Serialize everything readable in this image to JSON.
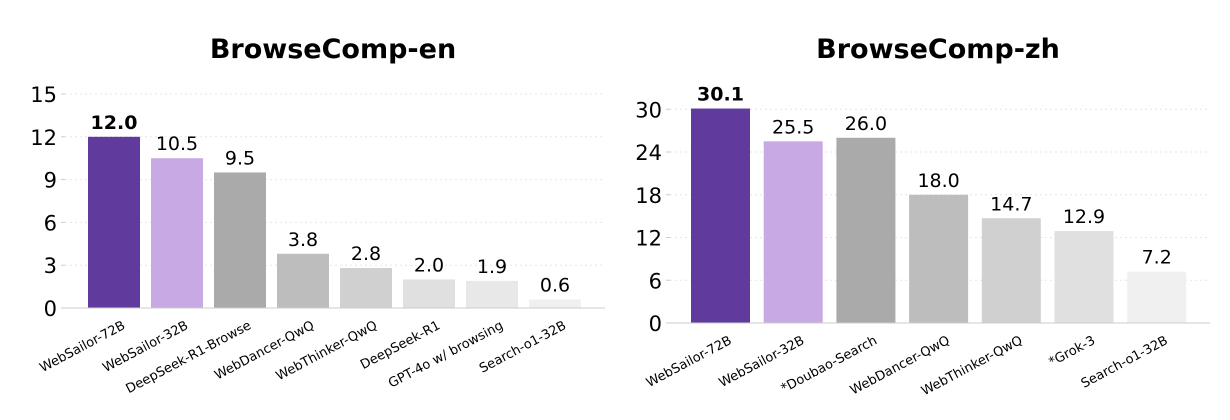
{
  "chart_data": [
    {
      "type": "bar",
      "title": "BrowseComp-en",
      "categories": [
        "WebSailor-72B",
        "WebSailor-32B",
        "DeepSeek-R1-Browse",
        "WebDancer-QwQ",
        "WebThinker-QwQ",
        "DeepSeek-R1",
        "GPT-4o w/ browsing",
        "Search-o1-32B"
      ],
      "values": [
        12.0,
        10.5,
        9.5,
        3.8,
        2.8,
        2.0,
        1.9,
        0.6
      ],
      "value_labels": [
        "12.0",
        "10.5",
        "9.5",
        "3.8",
        "2.8",
        "2.0",
        "1.9",
        "0.6"
      ],
      "colors": [
        "#613a9e",
        "#c8a9e3",
        "#aaaaaa",
        "#bdbdbd",
        "#d0d0d0",
        "#e0e0e0",
        "#e8e8e8",
        "#f0f0f0"
      ],
      "highlight_index": 0,
      "ylim": [
        0,
        15
      ],
      "yticks": [
        0,
        3,
        6,
        9,
        12,
        15
      ],
      "xlabel": "",
      "ylabel": "",
      "grid": true
    },
    {
      "type": "bar",
      "title": "BrowseComp-zh",
      "categories": [
        "WebSailor-72B",
        "WebSailor-32B",
        "*Doubao-Search",
        "WebDancer-QwQ",
        "WebThinker-QwQ",
        "*Grok-3",
        "Search-o1-32B"
      ],
      "values": [
        30.1,
        25.5,
        26.0,
        18.0,
        14.7,
        12.9,
        7.2
      ],
      "value_labels": [
        "30.1",
        "25.5",
        "26.0",
        "18.0",
        "14.7",
        "12.9",
        "7.2"
      ],
      "colors": [
        "#613a9e",
        "#c8a9e3",
        "#aaaaaa",
        "#bdbdbd",
        "#d0d0d0",
        "#e0e0e0",
        "#f0f0f0"
      ],
      "highlight_index": 0,
      "ylim": [
        0,
        32
      ],
      "yticks": [
        0,
        6,
        12,
        18,
        24,
        30
      ],
      "xlabel": "",
      "ylabel": "",
      "grid": true
    }
  ]
}
